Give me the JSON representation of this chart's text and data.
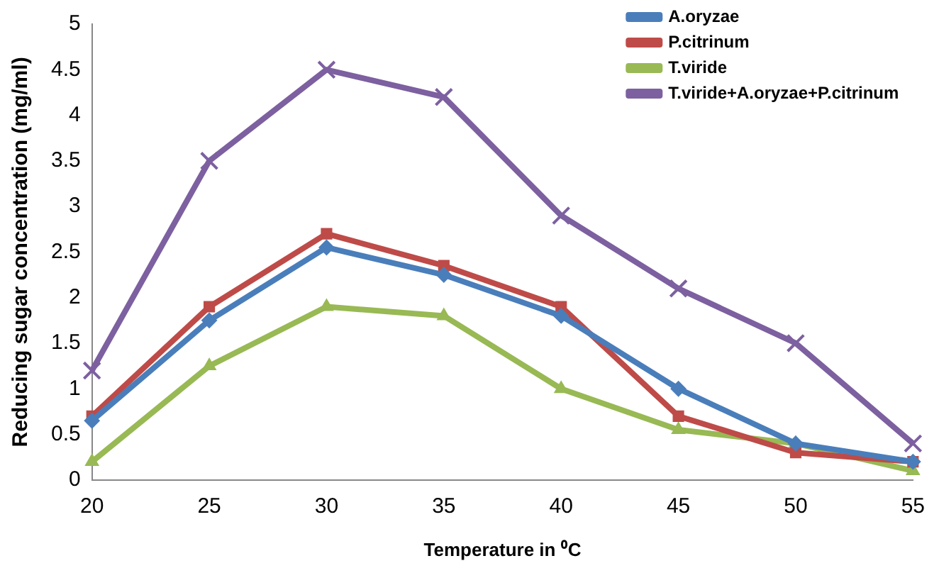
{
  "chart_data": {
    "type": "line",
    "xlabel": "Temperature in ⁰C",
    "ylabel": "Reducing sugar concentration (mg/ml)",
    "categories": [
      "20",
      "25",
      "30",
      "35",
      "40",
      "45",
      "50",
      "55"
    ],
    "series": [
      {
        "name": "A.oryzae",
        "color": "#4a7ebb",
        "marker": "diamond",
        "values": [
          0.65,
          1.75,
          2.55,
          2.25,
          1.8,
          1.0,
          0.4,
          0.2
        ]
      },
      {
        "name": "P.citrinum",
        "color": "#be4b48",
        "marker": "square",
        "values": [
          0.7,
          1.9,
          2.7,
          2.35,
          1.9,
          0.7,
          0.3,
          0.2
        ]
      },
      {
        "name": "T.viride",
        "color": "#98b954",
        "marker": "triangle",
        "values": [
          0.2,
          1.25,
          1.9,
          1.8,
          1.0,
          0.55,
          0.4,
          0.1
        ]
      },
      {
        "name": "T.viride+A.oryzae+P.citrinum",
        "color": "#7d60a0",
        "marker": "cross",
        "values": [
          1.2,
          3.5,
          4.5,
          4.2,
          2.9,
          2.1,
          1.5,
          0.4
        ]
      }
    ],
    "ylim": [
      0,
      5
    ],
    "yticks": [
      0,
      0.5,
      1,
      1.5,
      2,
      2.5,
      3,
      3.5,
      4,
      4.5,
      5
    ],
    "grid": false,
    "legend": "top right"
  }
}
